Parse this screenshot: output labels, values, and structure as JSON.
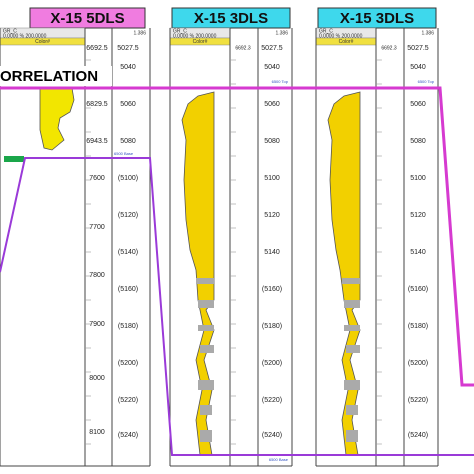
{
  "banner": "ORRELATION",
  "wells": [
    {
      "name": "X-15 5DLS",
      "curve": "GR_C",
      "scale": "0.0000 % 200.0000",
      "ratio": "1.386",
      "fill_label": "Color#",
      "md_labels": [
        "6692.5",
        "6829.5",
        "6943.5",
        "7600",
        "7700",
        "7800",
        "7900",
        "8000",
        "8100"
      ],
      "tvd_labels": [
        "5027.5",
        "5040",
        "5060",
        "5080",
        "(5100)",
        "(5120)",
        "(5140)",
        "(5160)",
        "(5180)",
        "(5200)",
        "(5220)",
        "(5240)"
      ],
      "base_tag": "6500 Base"
    },
    {
      "name": "X-15 3DLS",
      "curve": "GR_C",
      "scale": "0.0000 % 200.0000",
      "ratio": "1.386",
      "fill_label": "Color#",
      "md_labels": [
        "6692.3"
      ],
      "tvd_labels": [
        "5027.5",
        "5040",
        "5060",
        "5080",
        "5100",
        "5120",
        "5140",
        "(5160)",
        "(5180)",
        "(5200)",
        "(5220)",
        "(5240)"
      ],
      "top_tag": "6500 Top",
      "base_tag": "6500 Base"
    },
    {
      "name": "X-15 3DLS",
      "curve": "GR_C",
      "scale": "0.0000 % 200.0000",
      "ratio": "1.386",
      "fill_label": "Color#",
      "md_labels": [
        "6692.3"
      ],
      "tvd_labels": [
        "5027.5",
        "5040",
        "5060",
        "5080",
        "5100",
        "5120",
        "5140",
        "(5160)",
        "(5180)",
        "(5200)",
        "(5220)",
        "(5240)"
      ],
      "top_tag": "6500 Top"
    }
  ]
}
